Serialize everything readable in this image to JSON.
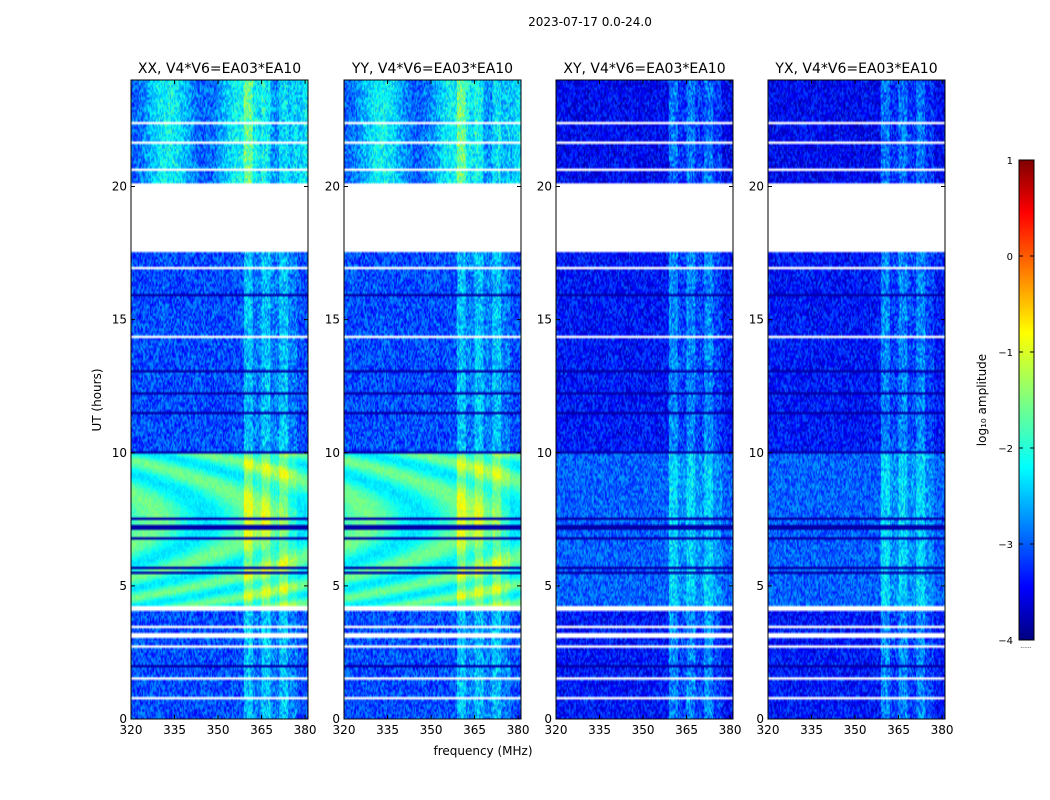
{
  "suptitle": "2023-07-17 0.0-24.0",
  "xlabel": "frequency (MHz)",
  "ylabel": "UT (hours)",
  "colorbar": {
    "label": "log₁₀ amplitude",
    "ticks": [
      "1",
      "0",
      "−1",
      "−2",
      "−3",
      "−4"
    ],
    "range": [
      -4,
      1
    ],
    "footer": "......"
  },
  "chart_data": [
    {
      "type": "heatmap",
      "title": "XX, V4*V6=EA03*EA10",
      "xlabel": "frequency (MHz)",
      "ylabel": "UT (hours)",
      "xlim": [
        320,
        381
      ],
      "ylim": [
        0,
        24
      ],
      "xticks": [
        "320",
        "335",
        "350",
        "365",
        "380"
      ],
      "yticks": [
        "0",
        "5",
        "10",
        "15",
        "20"
      ],
      "colorscale": "jet",
      "zlabel": "log10 amplitude",
      "zlim": [
        -4,
        1
      ],
      "gap_utc_hours": [
        [
          17.5,
          20.1
        ]
      ],
      "rfi_band_mhz": [
        359,
        377
      ],
      "strong_signal_utc_hours": [
        [
          4.2,
          10.0
        ]
      ]
    },
    {
      "type": "heatmap",
      "title": "YY, V4*V6=EA03*EA10",
      "xlabel": "frequency (MHz)",
      "ylabel": "UT (hours)",
      "xlim": [
        320,
        381
      ],
      "ylim": [
        0,
        24
      ],
      "xticks": [
        "320",
        "335",
        "350",
        "365",
        "380"
      ],
      "yticks": [
        "0",
        "5",
        "10",
        "15",
        "20"
      ],
      "colorscale": "jet",
      "zlabel": "log10 amplitude",
      "zlim": [
        -4,
        1
      ],
      "gap_utc_hours": [
        [
          17.5,
          20.1
        ]
      ],
      "rfi_band_mhz": [
        359,
        377
      ],
      "strong_signal_utc_hours": [
        [
          4.2,
          10.0
        ]
      ]
    },
    {
      "type": "heatmap",
      "title": "XY, V4*V6=EA03*EA10",
      "xlabel": "frequency (MHz)",
      "ylabel": "UT (hours)",
      "xlim": [
        320,
        381
      ],
      "ylim": [
        0,
        24
      ],
      "xticks": [
        "320",
        "335",
        "350",
        "365",
        "380"
      ],
      "yticks": [
        "0",
        "5",
        "10",
        "15",
        "20"
      ],
      "colorscale": "jet",
      "zlabel": "log10 amplitude",
      "zlim": [
        -4,
        1
      ],
      "gap_utc_hours": [
        [
          17.5,
          20.1
        ]
      ],
      "rfi_band_mhz": [
        359,
        377
      ],
      "strong_signal_utc_hours": []
    },
    {
      "type": "heatmap",
      "title": "YX, V4*V6=EA03*EA10",
      "xlabel": "frequency (MHz)",
      "ylabel": "UT (hours)",
      "xlim": [
        320,
        381
      ],
      "ylim": [
        0,
        24
      ],
      "xticks": [
        "320",
        "335",
        "350",
        "365",
        "380"
      ],
      "yticks": [
        "0",
        "5",
        "10",
        "15",
        "20"
      ],
      "colorscale": "jet",
      "zlabel": "log10 amplitude",
      "zlim": [
        -4,
        1
      ],
      "gap_utc_hours": [
        [
          17.5,
          20.1
        ]
      ],
      "rfi_band_mhz": [
        359,
        377
      ],
      "strong_signal_utc_hours": []
    }
  ]
}
